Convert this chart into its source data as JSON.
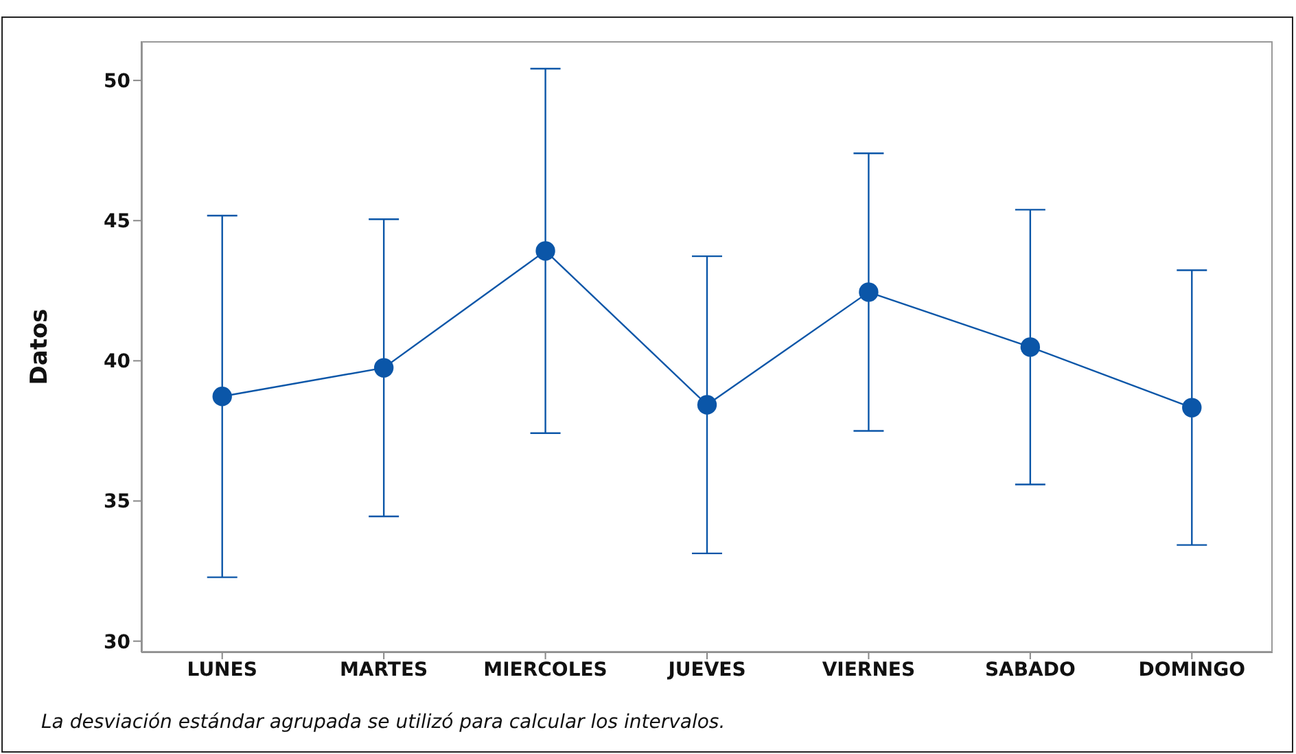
{
  "chart_data": {
    "type": "line",
    "ylabel": "Datos",
    "categories": [
      "LUNES",
      "MARTES",
      "MIERCOLES",
      "JUEVES",
      "VIERNES",
      "SABADO",
      "DOMINGO"
    ],
    "color": "#0b56a8",
    "values": [
      38.73,
      39.75,
      43.92,
      38.43,
      42.45,
      40.49,
      38.33
    ],
    "errors": [
      6.45,
      5.3,
      6.5,
      5.3,
      4.95,
      4.9,
      4.9
    ],
    "ylim": [
      29.6,
      51.4
    ],
    "yticks": [
      30,
      35,
      40,
      45,
      50
    ],
    "marker": "circle",
    "line_style": "solid",
    "annotations": [
      "La desviación estándar agrupada se utilizó para calcular los intervalos."
    ]
  }
}
